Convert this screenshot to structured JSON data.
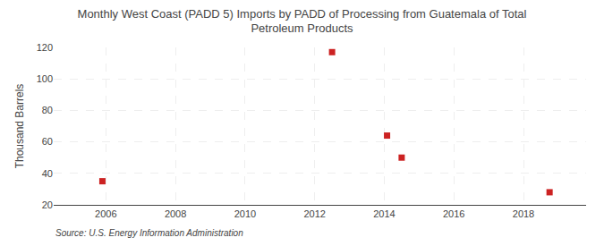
{
  "chart_data": {
    "type": "scatter",
    "title": "Monthly West Coast (PADD 5) Imports by PADD of Processing from Guatemala of Total\nPetroleum Products",
    "y_label": "Thousand Barrels",
    "annotations": [
      "Source: U.S. Energy Information Administration"
    ],
    "x": [
      2005.9,
      2012.5,
      2014.08,
      2014.5,
      2018.75
    ],
    "values": [
      35,
      117,
      64,
      50,
      28
    ],
    "color": "#cc2222",
    "marker": "square",
    "xlim": [
      2004.5,
      2019.8
    ],
    "ylim": [
      20,
      120
    ],
    "xticks": [
      2006,
      2008,
      2010,
      2012,
      2014,
      2016,
      2018
    ],
    "yticks": [
      20,
      40,
      60,
      80,
      100,
      120
    ],
    "grid": true
  }
}
